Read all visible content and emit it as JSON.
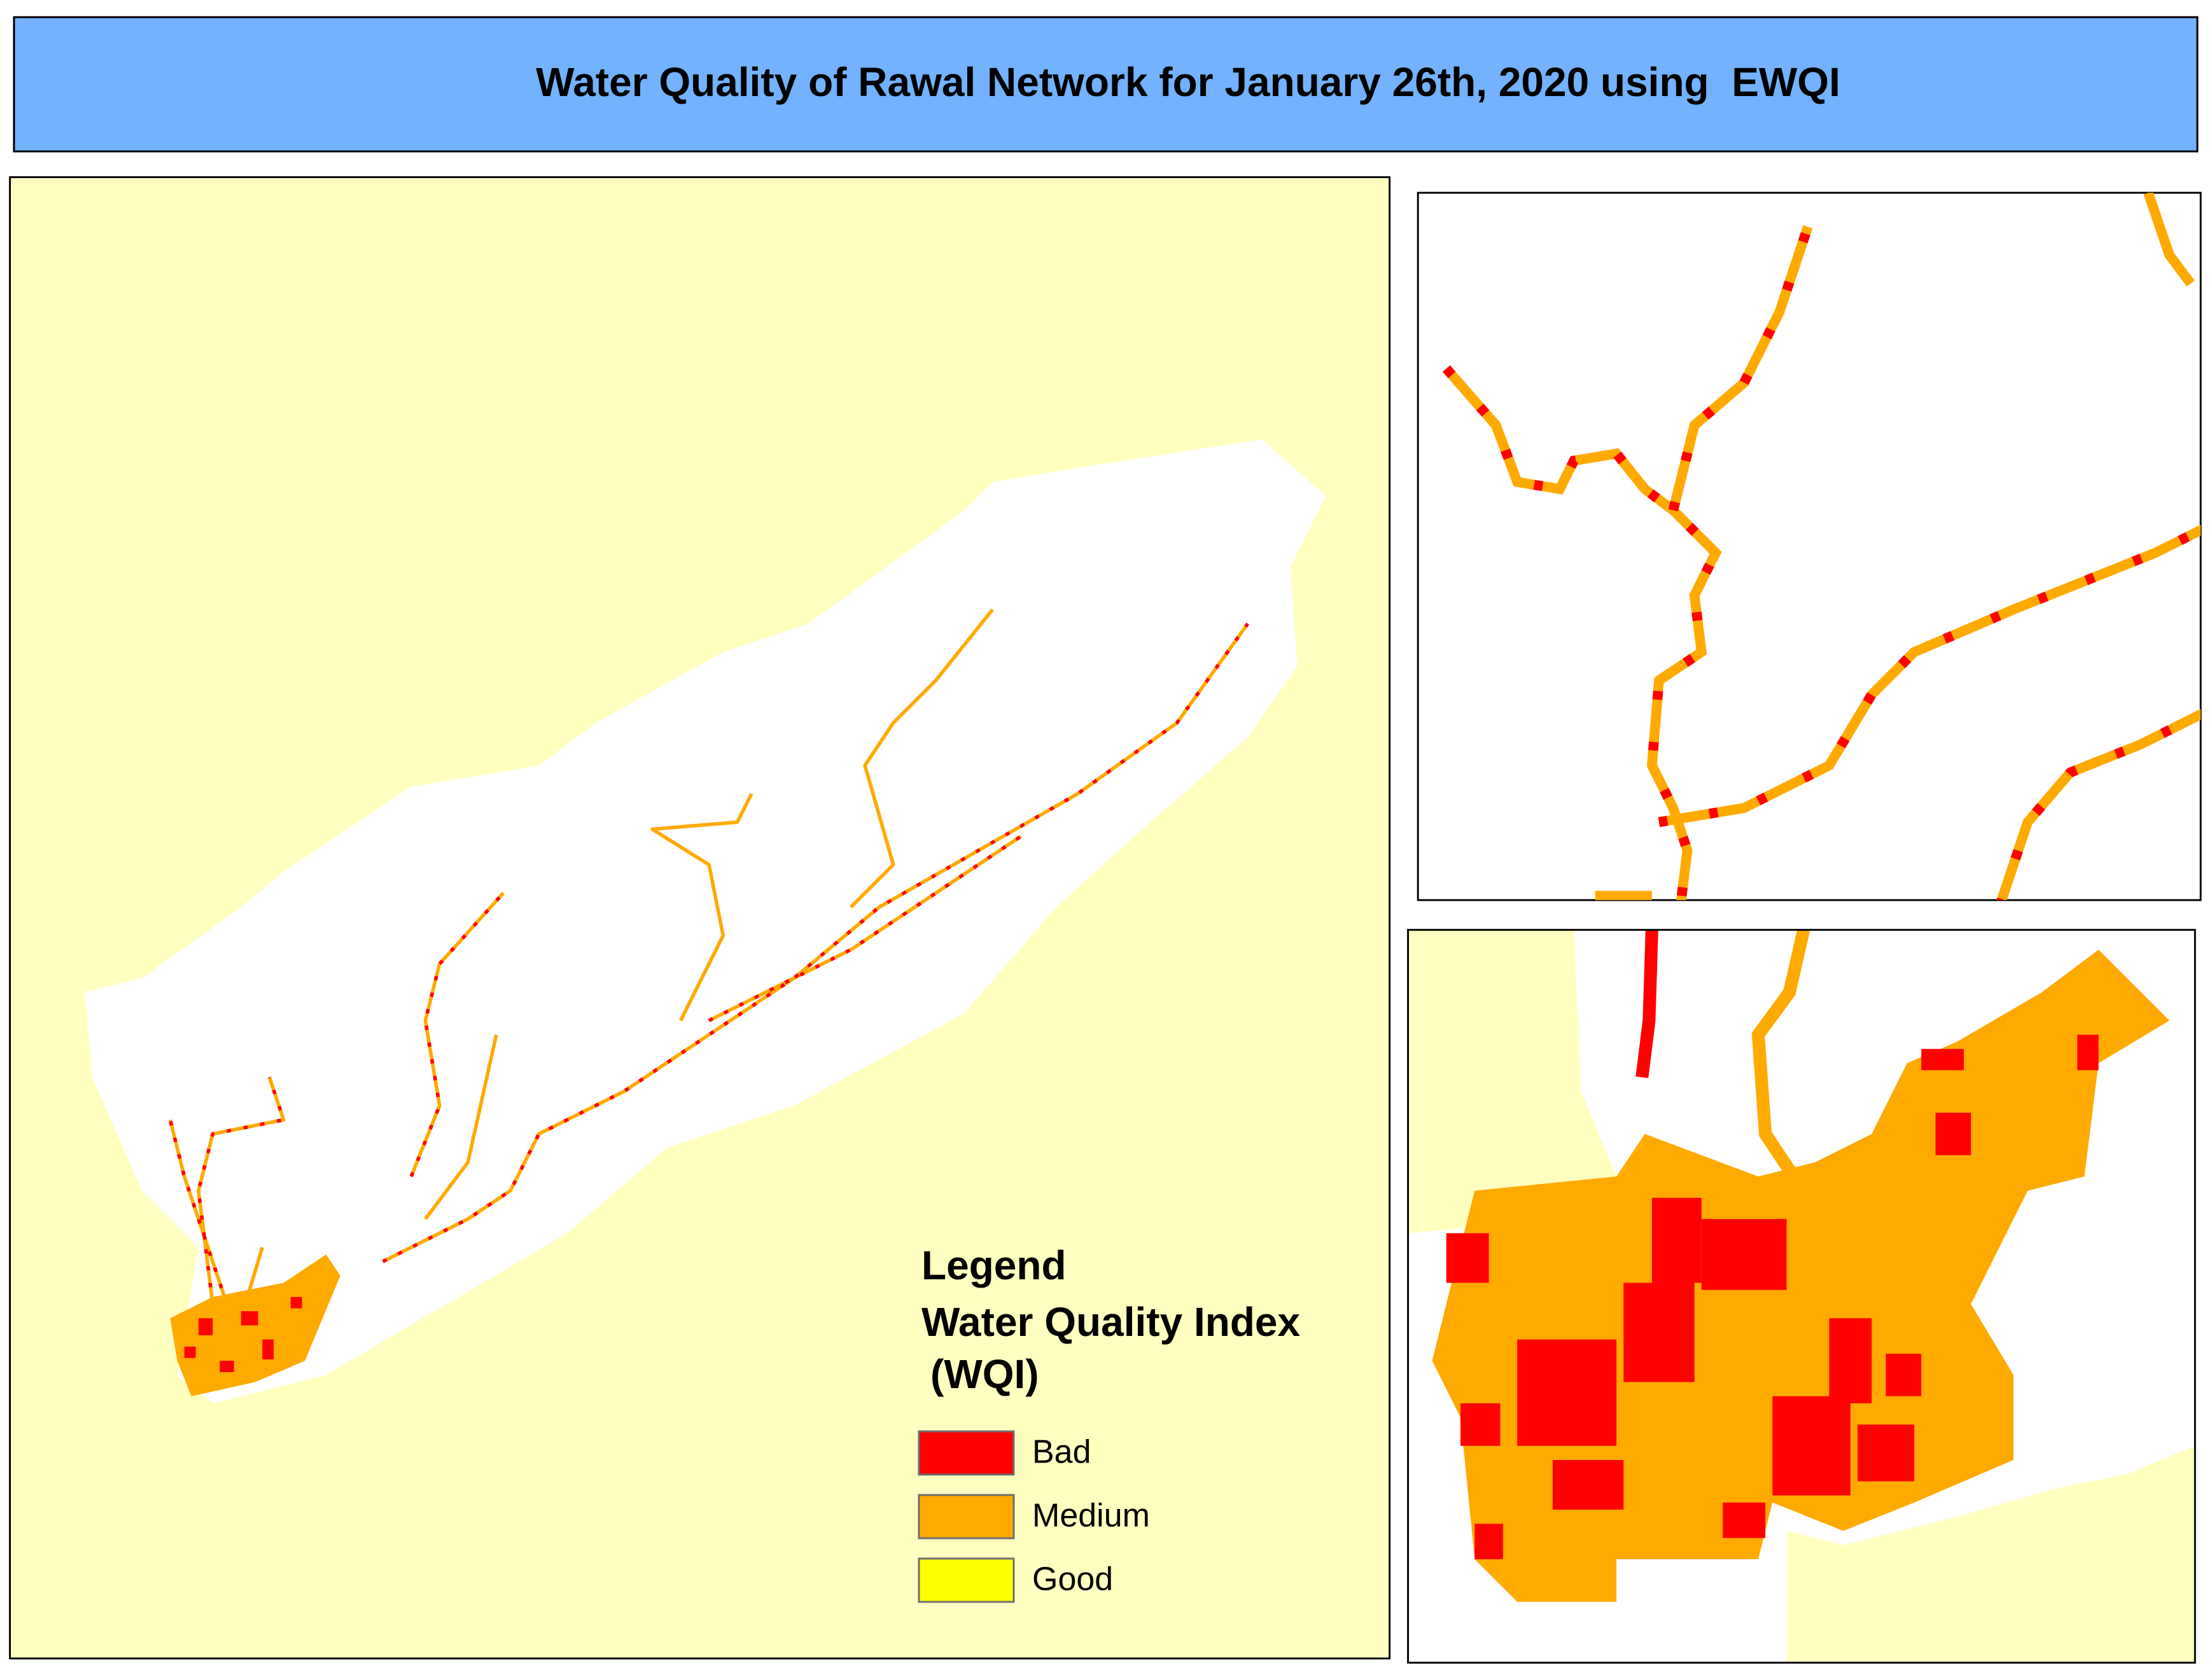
{
  "title": "Water Quality of Rawal Network for January 26th, 2020 using  EWQI",
  "legend": {
    "heading": "Legend",
    "title_lines": [
      "Water Quality Index",
      "(WQI)"
    ],
    "items": [
      {
        "label": "Bad",
        "color": "#ff0000"
      },
      {
        "label": "Medium",
        "color": "#ffaa00"
      },
      {
        "label": "Good",
        "color": "#ffff00"
      }
    ]
  }
}
